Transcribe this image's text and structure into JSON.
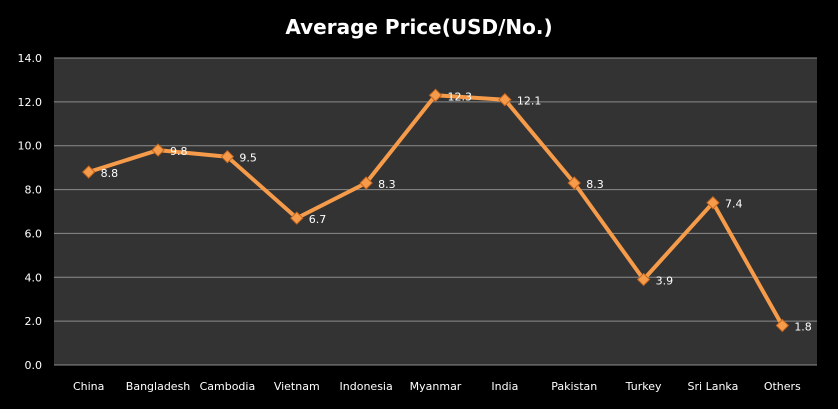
{
  "chart_data": {
    "type": "line",
    "title": "Average Price(USD/No.)",
    "xlabel": "",
    "ylabel": "",
    "categories": [
      "China",
      "Bangladesh",
      "Cambodia",
      "Vietnam",
      "Indonesia",
      "Myanmar",
      "India",
      "Pakistan",
      "Turkey",
      "Sri Lanka",
      "Others"
    ],
    "series": [
      {
        "values": [
          8.8,
          9.8,
          9.5,
          6.7,
          8.3,
          12.3,
          12.1,
          8.3,
          3.9,
          7.4,
          1.8
        ]
      }
    ],
    "data_labels": [
      "8.8",
      "9.8",
      "9.5",
      "6.7",
      "8.3",
      "12.3",
      "12.1",
      "8.3",
      "3.9",
      "7.4",
      "1.8"
    ],
    "ylim": [
      0,
      14
    ],
    "yticks": [
      "0.0",
      "2.0",
      "4.0",
      "6.0",
      "8.0",
      "10.0",
      "12.0",
      "14.0"
    ],
    "grid": true,
    "legend": "none",
    "colors": {
      "background": "#000000",
      "plot_area": "#333333",
      "grid": "#8c8c8c",
      "line": "#f59b4a",
      "marker": "#f59b4a",
      "marker_edge": "#c4661f",
      "text": "#ffffff"
    }
  }
}
